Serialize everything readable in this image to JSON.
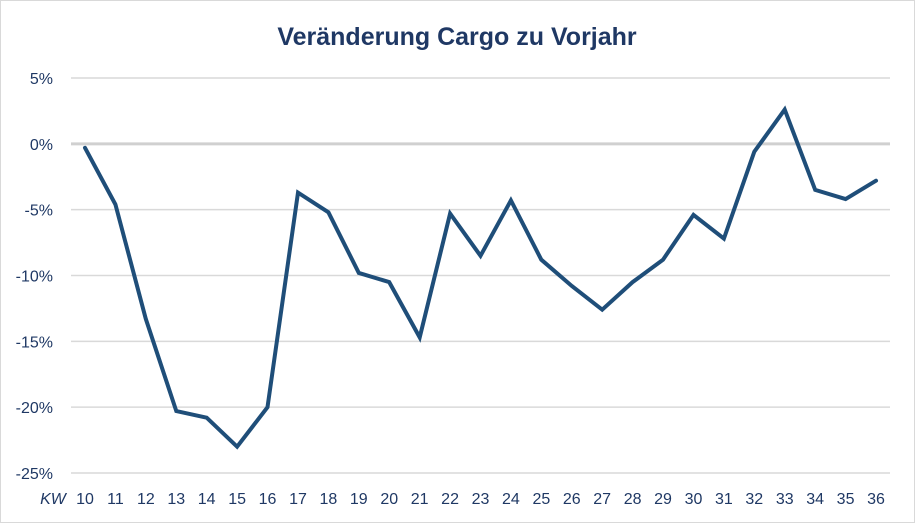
{
  "chart_data": {
    "type": "line",
    "title": "Veränderung Cargo zu Vorjahr",
    "xlabel": "KW",
    "ylabel": "",
    "categories": [
      "10",
      "11",
      "12",
      "13",
      "14",
      "15",
      "16",
      "17",
      "18",
      "19",
      "20",
      "21",
      "22",
      "23",
      "24",
      "25",
      "26",
      "27",
      "28",
      "29",
      "30",
      "31",
      "32",
      "33",
      "34",
      "35",
      "36"
    ],
    "series": [
      {
        "name": "Veränderung Cargo zu Vorjahr",
        "color": "#1f4e79",
        "values": [
          -0.3,
          -4.6,
          -13.3,
          -20.3,
          -20.8,
          -23.0,
          -20.0,
          -3.7,
          -5.2,
          -9.8,
          -10.5,
          -14.7,
          -5.3,
          -8.5,
          -4.3,
          -8.8,
          -10.8,
          -12.6,
          -10.5,
          -8.8,
          -5.4,
          -7.2,
          -0.6,
          2.6,
          -3.5,
          -4.2,
          -2.8
        ]
      }
    ],
    "yticks": [
      5,
      0,
      -5,
      -10,
      -15,
      -20,
      -25
    ],
    "ytick_labels": [
      "5%",
      "0%",
      "-5%",
      "-10%",
      "-15%",
      "-20%",
      "-25%"
    ],
    "ylim": [
      -25,
      5
    ],
    "grid": true,
    "legend": "none"
  },
  "colors": {
    "line": "#1f4e79",
    "text": "#1f3864",
    "grid": "#d9d9d9",
    "zero_line": "#d0d0d0"
  }
}
